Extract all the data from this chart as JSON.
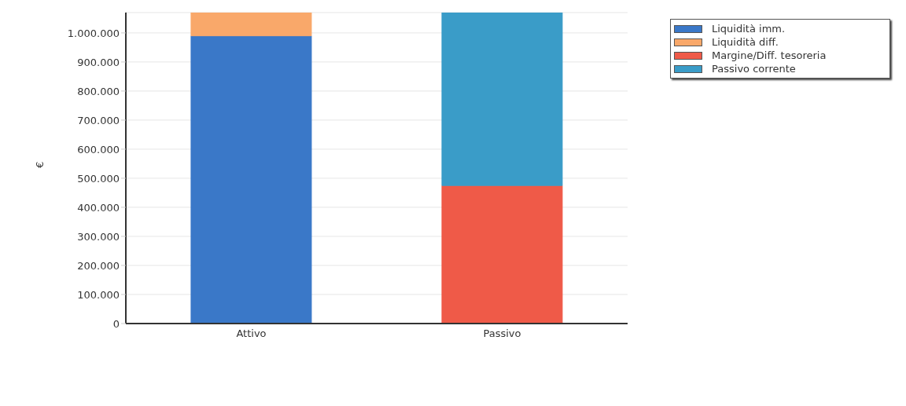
{
  "chart_data": {
    "type": "bar",
    "stacked": true,
    "ylabel": "€",
    "categories": [
      "Attivo",
      "Passivo"
    ],
    "series": [
      {
        "name": "Liquidità imm.",
        "color": "#3a78c8",
        "values": [
          990000,
          null
        ]
      },
      {
        "name": "Liquidità diff.",
        "color": "#f9a86a",
        "values": [
          80000,
          null
        ]
      },
      {
        "name": "Margine/Diff. tesoreria",
        "color": "#ef5a48",
        "values": [
          null,
          475000
        ]
      },
      {
        "name": "Passivo corrente",
        "color": "#3a9cc8",
        "values": [
          null,
          595000
        ]
      }
    ],
    "ylim": [
      0,
      1070000
    ],
    "yticks": [
      {
        "value": 0,
        "label": "0"
      },
      {
        "value": 100000,
        "label": "100.000"
      },
      {
        "value": 200000,
        "label": "200.000"
      },
      {
        "value": 300000,
        "label": "300.000"
      },
      {
        "value": 400000,
        "label": "400.000"
      },
      {
        "value": 500000,
        "label": "500.000"
      },
      {
        "value": 600000,
        "label": "600.000"
      },
      {
        "value": 700000,
        "label": "700.000"
      },
      {
        "value": 800000,
        "label": "800.000"
      },
      {
        "value": 900000,
        "label": "900.000"
      },
      {
        "value": 1000000,
        "label": "1.000.000"
      }
    ],
    "grid": "y",
    "legend": "top right"
  }
}
